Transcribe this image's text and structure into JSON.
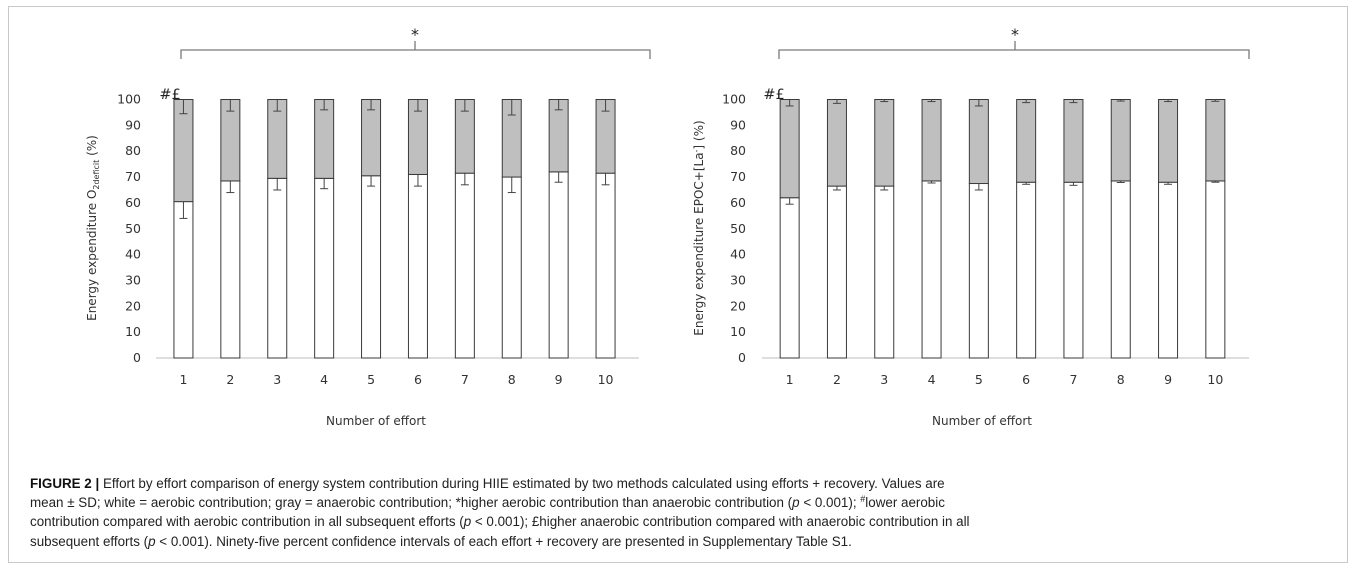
{
  "figure": {
    "caption": {
      "lead": "FIGURE 2 |",
      "line1": " Effort by effort comparison of energy system contribution during HIIE estimated by two methods calculated using efforts + recovery. Values are",
      "line2_a": "mean ± SD; white = aerobic contribution; gray = anaerobic contribution; *higher aerobic contribution than anaerobic contribution (",
      "p": "p",
      "line2_b": " < 0.001); ",
      "hash": "#",
      "line2_c": "lower aerobic",
      "line3_a": "contribution compared with aerobic contribution in all subsequent efforts (",
      "line3_b": " < 0.001); £higher anaerobic contribution compared with anaerobic contribution in all",
      "line4_a": "subsequent efforts (",
      "line4_b": " < 0.001). Ninety-five percent confidence intervals of each effort + recovery are presented in Supplementary Table S1."
    }
  },
  "colors": {
    "aerobic": "#ffffff",
    "anaerobic": "#bfbfbf",
    "outline": "#3a3a3a",
    "axis": "#bdbdbd",
    "bracket": "#7a7a7a",
    "text": "#333333"
  },
  "chart_data": [
    {
      "type": "bar",
      "stacked": true,
      "xlabel": "Number of effort",
      "ylabel_main": "Energy expenditure  O",
      "ylabel_sub": "2deficit",
      "ylabel_tail": " (%)",
      "ylim": [
        0,
        100
      ],
      "yticks": [
        "0",
        "10",
        "20",
        "30",
        "40",
        "50",
        "60",
        "70",
        "80",
        "90",
        "100"
      ],
      "categories": [
        "1",
        "2",
        "3",
        "4",
        "5",
        "6",
        "7",
        "8",
        "9",
        "10"
      ],
      "series": [
        {
          "values": [
            60.5,
            68.5,
            69.5,
            69.5,
            70.5,
            71,
            71.5,
            70,
            72,
            71.5
          ],
          "errors": [
            6.5,
            4.5,
            4.5,
            4,
            4,
            4.5,
            4.5,
            6,
            4,
            4.5
          ]
        },
        {
          "values": [
            39.5,
            31.5,
            30.5,
            30.5,
            29.5,
            29,
            28.5,
            30,
            28,
            28.5
          ],
          "errors": [
            5.5,
            4.5,
            4.5,
            4,
            4,
            4.5,
            4.5,
            6,
            4,
            4.5
          ]
        }
      ],
      "annotations": {
        "first_bar": "#£",
        "bracket": "*"
      }
    },
    {
      "type": "bar",
      "stacked": true,
      "xlabel": "Number of effort",
      "ylabel_main": "Energy expenditure EPOC+[La",
      "ylabel_sup": "-",
      "ylabel_tail": "] (%)",
      "ylim": [
        0,
        100
      ],
      "yticks": [
        "0",
        "10",
        "20",
        "30",
        "40",
        "50",
        "60",
        "70",
        "80",
        "90",
        "100"
      ],
      "categories": [
        "1",
        "2",
        "3",
        "4",
        "5",
        "6",
        "7",
        "8",
        "9",
        "10"
      ],
      "series": [
        {
          "values": [
            62,
            66.5,
            66.5,
            68.5,
            67.5,
            68,
            68,
            68.5,
            68,
            68.5
          ],
          "errors": [
            2.5,
            1.5,
            1.5,
            0.8,
            2.5,
            0.8,
            1.2,
            0.6,
            0.8,
            0.5
          ]
        },
        {
          "values": [
            38,
            33.5,
            33.5,
            31.5,
            32.5,
            32,
            32,
            31.5,
            32,
            31.5
          ],
          "errors": [
            2.5,
            1.5,
            0.8,
            0.8,
            2.5,
            1.2,
            1.2,
            0.6,
            0.8,
            0.7
          ]
        }
      ],
      "annotations": {
        "first_bar": "#£",
        "bracket": "*"
      }
    }
  ]
}
